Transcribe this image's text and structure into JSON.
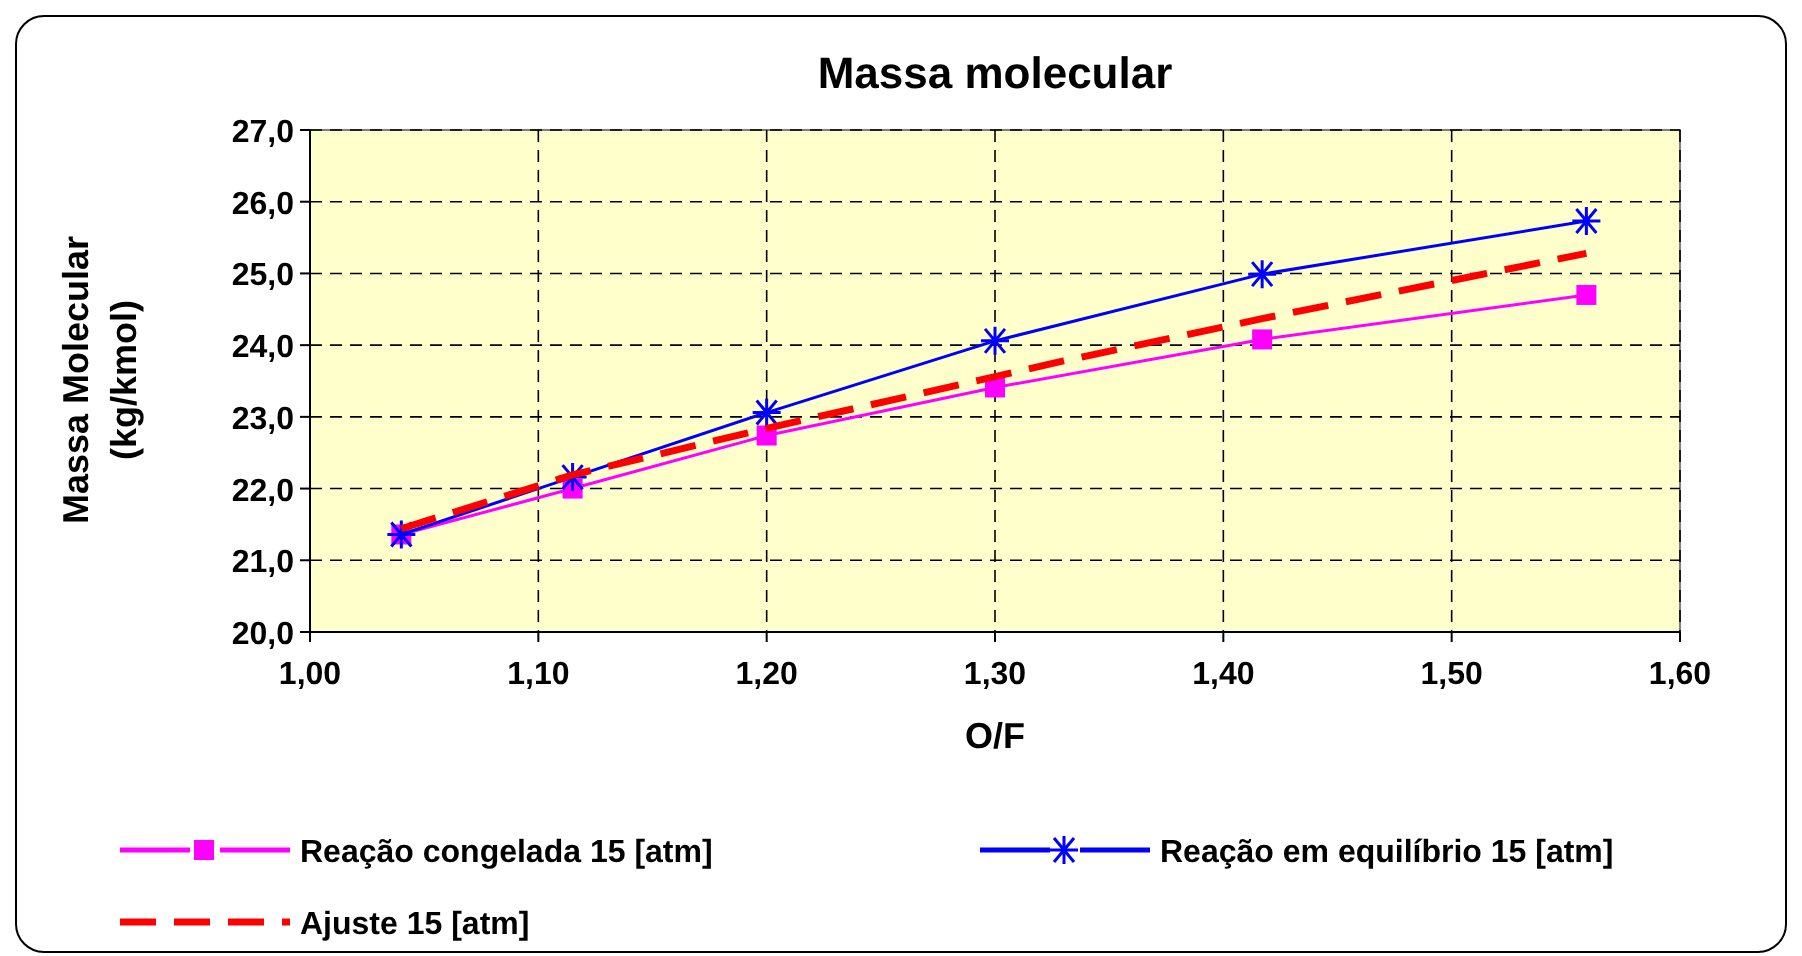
{
  "chart_data": {
    "type": "line",
    "title": "Massa molecular",
    "xlabel": "O/F",
    "ylabel": "Massa Molecular (kg/kmol)",
    "xlim": [
      1.0,
      1.6
    ],
    "xticks": [
      {
        "value": 1.0,
        "label": "1,00"
      },
      {
        "value": 1.1,
        "label": "1,10"
      },
      {
        "value": 1.2,
        "label": "1,20"
      },
      {
        "value": 1.3,
        "label": "1,30"
      },
      {
        "value": 1.4,
        "label": "1,40"
      },
      {
        "value": 1.5,
        "label": "1,50"
      },
      {
        "value": 1.6,
        "label": "1,60"
      }
    ],
    "ylim": [
      20,
      27
    ],
    "yticks": [
      {
        "value": 20,
        "label": "20,0"
      },
      {
        "value": 21,
        "label": "21,0"
      },
      {
        "value": 22,
        "label": "22,0"
      },
      {
        "value": 23,
        "label": "23,0"
      },
      {
        "value": 24,
        "label": "24,0"
      },
      {
        "value": 25,
        "label": "25,0"
      },
      {
        "value": 26,
        "label": "26,0"
      },
      {
        "value": 27,
        "label": "27,0"
      }
    ],
    "grid": true,
    "legend": "bottom",
    "series": [
      {
        "name": "Reação congelada 15 [atm]",
        "color": "#ff00ff",
        "marker": "square",
        "line_style": "solid",
        "x": [
          1.04,
          1.115,
          1.2,
          1.3,
          1.417,
          1.559
        ],
        "values": [
          21.36,
          22.0,
          22.74,
          23.41,
          24.08,
          24.7
        ]
      },
      {
        "name": "Reação em equilíbrio 15 [atm]",
        "color": "#0000ff",
        "marker": "cross",
        "line_style": "solid",
        "x": [
          1.04,
          1.115,
          1.2,
          1.3,
          1.417,
          1.559
        ],
        "values": [
          21.36,
          22.16,
          23.06,
          24.06,
          24.99,
          25.73
        ]
      },
      {
        "name": "Ajuste 15 [atm]",
        "color": "#ff0000",
        "marker": "none",
        "line_style": "dashed",
        "x": [
          1.04,
          1.115,
          1.2,
          1.3,
          1.33,
          1.417,
          1.559
        ],
        "values": [
          21.44,
          22.19,
          22.84,
          23.56,
          23.78,
          24.37,
          25.28
        ]
      }
    ]
  }
}
